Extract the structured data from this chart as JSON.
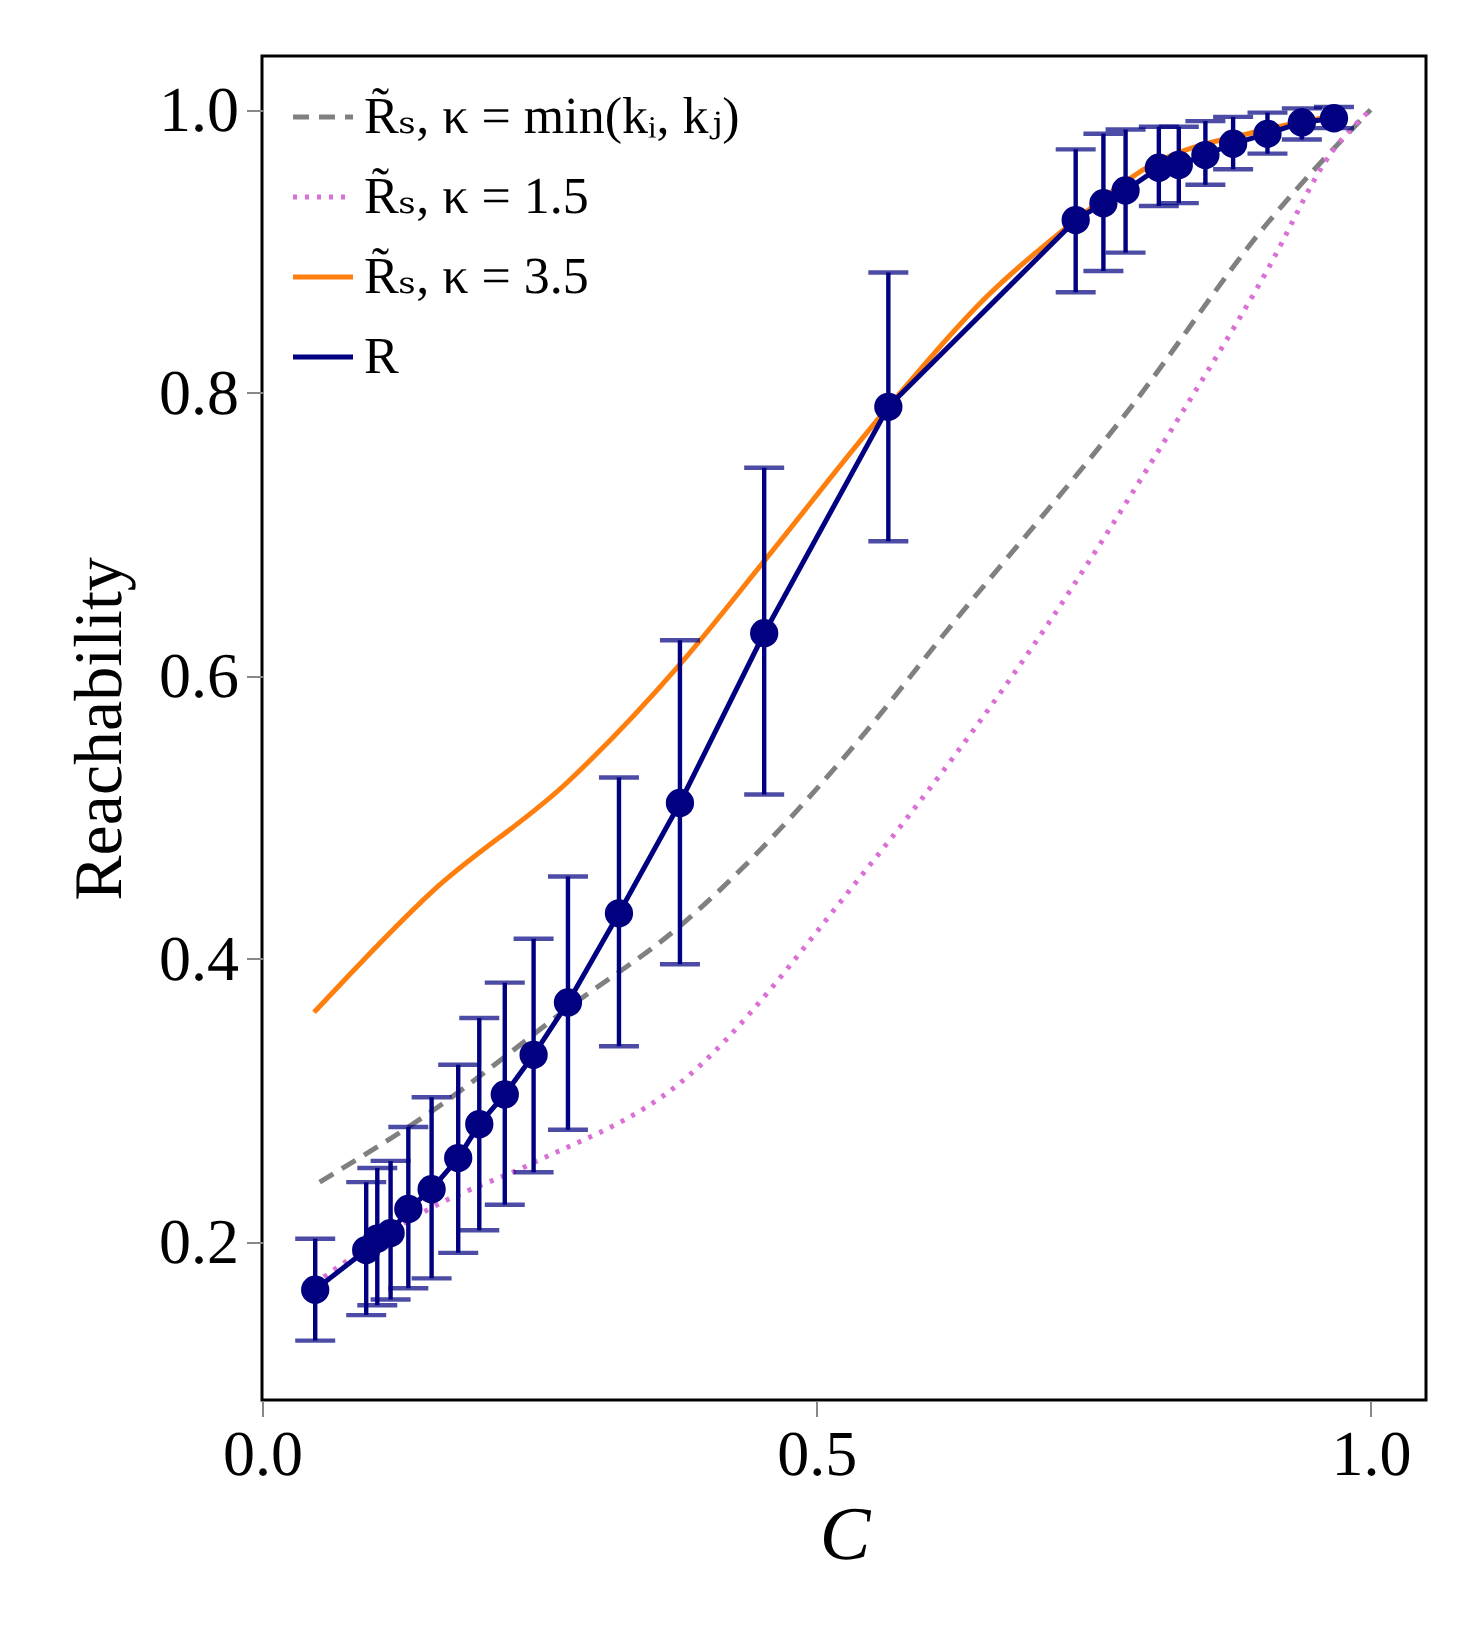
{
  "chart_data": {
    "type": "line",
    "xlabel": "C",
    "ylabel": "Reachability",
    "xlim": [
      0,
      1.05
    ],
    "ylim": [
      0.088,
      1.038
    ],
    "xticks": [
      {
        "value": 0,
        "label": "0.0"
      },
      0.5,
      {
        "value": 1,
        "label": "1.0"
      }
    ],
    "yticks": [
      0.2,
      0.4,
      0.6,
      0.8,
      {
        "value": 1,
        "label": "1.0"
      }
    ],
    "legend": "top left",
    "series": [
      {
        "name": "R̃ₛ, κ = min(kᵢ, kⱼ)",
        "color": "#808080",
        "line_style": "dashed",
        "marker": "none",
        "x": [
          0.052,
          0.153,
          0.276,
          0.377,
          0.539,
          0.616,
          0.785,
          0.905,
          1.0
        ],
        "values": [
          0.242,
          0.292,
          0.365,
          0.423,
          0.555,
          0.63,
          0.791,
          0.918,
          1.0
        ]
      },
      {
        "name": "R̃ₛ, κ = 1.5",
        "color": "#da70d6",
        "line_style": "dotted",
        "marker": "none",
        "x": [
          0.047,
          0.153,
          0.243,
          0.377,
          0.539,
          0.706,
          0.815,
          0.905,
          0.965,
          1.0
        ],
        "values": [
          0.17,
          0.224,
          0.255,
          0.312,
          0.457,
          0.633,
          0.767,
          0.884,
          0.97,
          1.0
        ]
      },
      {
        "name": "R̃ₛ, κ = 3.5",
        "color": "#ff7f0e",
        "line_style": "solid",
        "marker": "none",
        "x": [
          0.047,
          0.153,
          0.276,
          0.377,
          0.453,
          0.565,
          0.65,
          0.734,
          0.8,
          0.9,
          0.97
        ],
        "values": [
          0.362,
          0.447,
          0.525,
          0.608,
          0.681,
          0.79,
          0.865,
          0.922,
          0.96,
          0.985,
          0.996
        ]
      },
      {
        "name": "R",
        "color": "#000080",
        "line_style": "solid",
        "marker": "circle",
        "x": [
          0.048,
          0.094,
          0.104,
          0.116,
          0.132,
          0.153,
          0.177,
          0.196,
          0.219,
          0.245,
          0.276,
          0.322,
          0.377,
          0.453,
          0.565,
          0.734,
          0.759,
          0.779,
          0.809,
          0.827,
          0.851,
          0.876,
          0.907,
          0.938,
          0.967
        ],
        "values": [
          0.166,
          0.194,
          0.202,
          0.206,
          0.223,
          0.237,
          0.259,
          0.283,
          0.304,
          0.332,
          0.369,
          0.432,
          0.51,
          0.63,
          0.79,
          0.922,
          0.934,
          0.943,
          0.959,
          0.961,
          0.968,
          0.976,
          0.983,
          0.991,
          0.994
        ],
        "errors": [
          [
            0.13,
            0.202
          ],
          [
            0.148,
            0.242
          ],
          [
            0.155,
            0.252
          ],
          [
            0.159,
            0.257
          ],
          [
            0.167,
            0.281
          ],
          [
            0.174,
            0.302
          ],
          [
            0.192,
            0.325
          ],
          [
            0.208,
            0.358
          ],
          [
            0.226,
            0.383
          ],
          [
            0.249,
            0.414
          ],
          [
            0.279,
            0.458
          ],
          [
            0.338,
            0.528
          ],
          [
            0.396,
            0.625
          ],
          [
            0.516,
            0.747
          ],
          [
            0.695,
            0.885
          ],
          [
            0.871,
            0.972
          ],
          [
            0.886,
            0.983
          ],
          [
            0.899,
            0.986
          ],
          [
            0.932,
            0.988
          ],
          [
            0.934,
            0.988
          ],
          [
            0.947,
            0.992
          ],
          [
            0.958,
            0.995
          ],
          [
            0.969,
            0.998
          ],
          [
            0.979,
            1.001
          ],
          [
            0.987,
            1.002
          ]
        ]
      }
    ]
  }
}
